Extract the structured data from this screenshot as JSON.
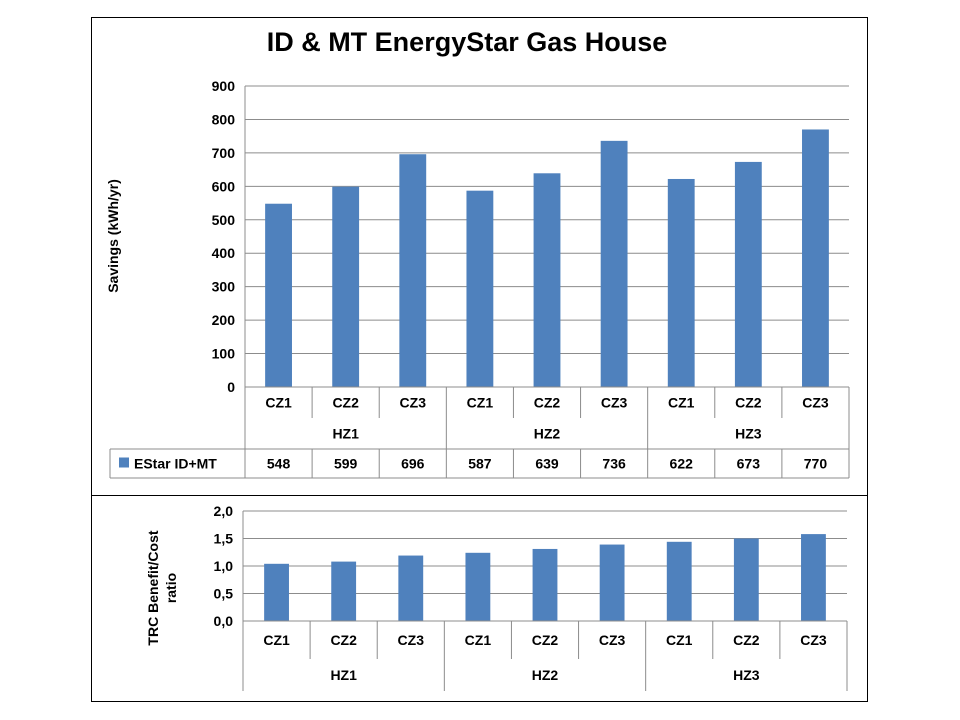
{
  "chart_data": [
    {
      "type": "bar",
      "title": "ID & MT EnergyStar Gas House",
      "ylabel": "Savings (kWh/yr)",
      "xlabel": "",
      "ylim": [
        0,
        900
      ],
      "yticks": [
        "0",
        "100",
        "200",
        "300",
        "400",
        "500",
        "600",
        "700",
        "800",
        "900"
      ],
      "categories": [
        "CZ1",
        "CZ2",
        "CZ3",
        "CZ1",
        "CZ2",
        "CZ3",
        "CZ1",
        "CZ2",
        "CZ3"
      ],
      "groups": [
        "HZ1",
        "HZ2",
        "HZ3"
      ],
      "series": [
        {
          "name": "EStar ID+MT",
          "values": [
            548,
            599,
            696,
            587,
            639,
            736,
            622,
            673,
            770
          ]
        }
      ],
      "data_table": true,
      "grid": true,
      "bar_color": "#4F81BD"
    },
    {
      "type": "bar",
      "title": "",
      "ylabel": "TRC Benefit/Cost ratio",
      "xlabel": "",
      "ylim": [
        0,
        2.0
      ],
      "yticks": [
        "0,0",
        "0,5",
        "1,0",
        "1,5",
        "2,0"
      ],
      "categories": [
        "CZ1",
        "CZ2",
        "CZ3",
        "CZ1",
        "CZ2",
        "CZ3",
        "CZ1",
        "CZ2",
        "CZ3"
      ],
      "groups": [
        "HZ1",
        "HZ2",
        "HZ3"
      ],
      "series": [
        {
          "values": [
            1.04,
            1.08,
            1.19,
            1.24,
            1.31,
            1.39,
            1.44,
            1.5,
            1.58
          ]
        }
      ],
      "grid": true,
      "bar_color": "#4F81BD"
    }
  ]
}
